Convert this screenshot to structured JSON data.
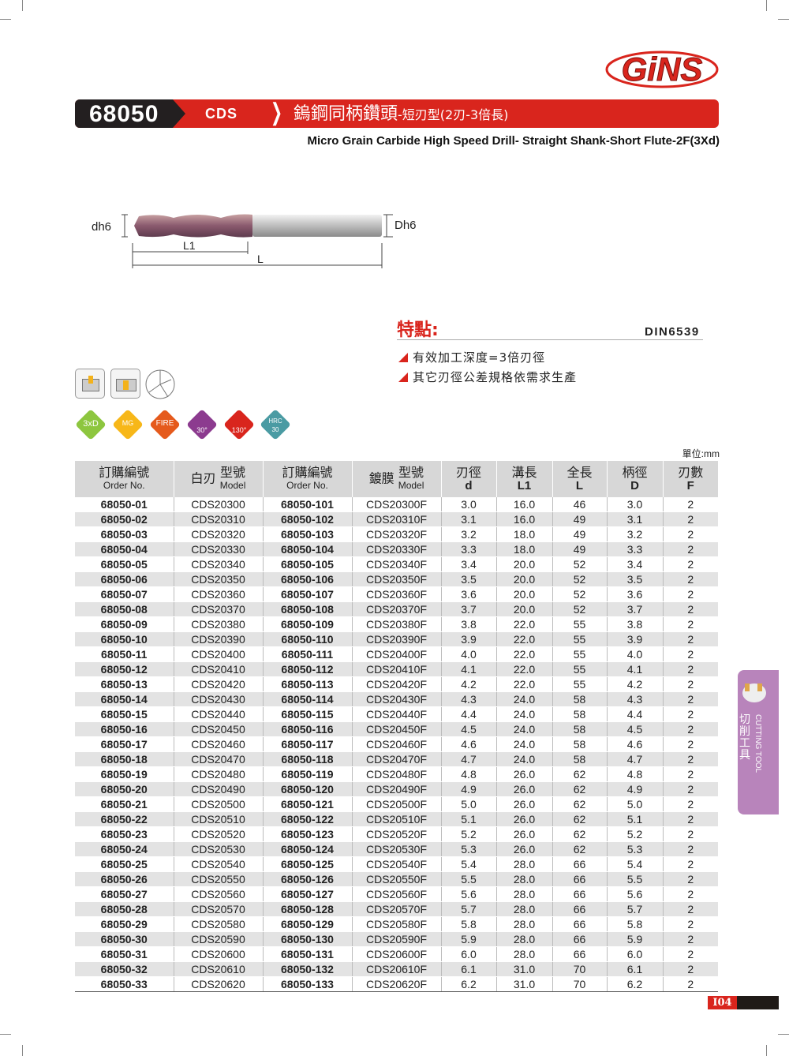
{
  "logo": {
    "text": "GiNS",
    "color": "#d9251d"
  },
  "header": {
    "code": "68050",
    "series": "CDS",
    "title_main": "鎢鋼同柄鑽頭",
    "title_sub": "-短刃型(2刃-3倍長)",
    "subtitle": "Micro Grain Carbide High Speed Drill- Straight Shank-Short Flute-2F(3Xd)",
    "accent": "#d9251d"
  },
  "diagram": {
    "dh6": "dh6",
    "Dh6": "Dh6",
    "L1": "L1",
    "L": "L"
  },
  "features": {
    "heading": "特點:",
    "standard": "DIN6539",
    "items": [
      "有效加工深度=3倍刃徑",
      "其它刃徑公差規格依需求生產"
    ]
  },
  "badges": [
    {
      "label": "3xD",
      "color": "#8dc63f"
    },
    {
      "label": "MG",
      "color": "#f7b719"
    },
    {
      "label": "FIRE",
      "color": "#e55a1c"
    },
    {
      "label": "30°",
      "color": "#8c3b8f"
    },
    {
      "label": "130°",
      "color": "#d9251d"
    },
    {
      "label": "HRC 30",
      "color": "#4a9ba3"
    }
  ],
  "table": {
    "unit": "單位:mm",
    "headers": [
      {
        "cn": "訂購編號",
        "en": "Order No."
      },
      {
        "cn_left": "白刃",
        "cn": "型號",
        "en": "Model"
      },
      {
        "cn": "訂購編號",
        "en": "Order No."
      },
      {
        "cn_left": "鍍膜",
        "cn": "型號",
        "en": "Model"
      },
      {
        "cn": "刃徑",
        "sym": "d"
      },
      {
        "cn": "溝長",
        "sym": "L1"
      },
      {
        "cn": "全長",
        "sym": "L"
      },
      {
        "cn": "柄徑",
        "sym": "D"
      },
      {
        "cn": "刃數",
        "sym": "F"
      }
    ],
    "rows": [
      [
        "68050-01",
        "CDS20300",
        "68050-101",
        "CDS20300F",
        "3.0",
        "16.0",
        "46",
        "3.0",
        "2"
      ],
      [
        "68050-02",
        "CDS20310",
        "68050-102",
        "CDS20310F",
        "3.1",
        "16.0",
        "49",
        "3.1",
        "2"
      ],
      [
        "68050-03",
        "CDS20320",
        "68050-103",
        "CDS20320F",
        "3.2",
        "18.0",
        "49",
        "3.2",
        "2"
      ],
      [
        "68050-04",
        "CDS20330",
        "68050-104",
        "CDS20330F",
        "3.3",
        "18.0",
        "49",
        "3.3",
        "2"
      ],
      [
        "68050-05",
        "CDS20340",
        "68050-105",
        "CDS20340F",
        "3.4",
        "20.0",
        "52",
        "3.4",
        "2"
      ],
      [
        "68050-06",
        "CDS20350",
        "68050-106",
        "CDS20350F",
        "3.5",
        "20.0",
        "52",
        "3.5",
        "2"
      ],
      [
        "68050-07",
        "CDS20360",
        "68050-107",
        "CDS20360F",
        "3.6",
        "20.0",
        "52",
        "3.6",
        "2"
      ],
      [
        "68050-08",
        "CDS20370",
        "68050-108",
        "CDS20370F",
        "3.7",
        "20.0",
        "52",
        "3.7",
        "2"
      ],
      [
        "68050-09",
        "CDS20380",
        "68050-109",
        "CDS20380F",
        "3.8",
        "22.0",
        "55",
        "3.8",
        "2"
      ],
      [
        "68050-10",
        "CDS20390",
        "68050-110",
        "CDS20390F",
        "3.9",
        "22.0",
        "55",
        "3.9",
        "2"
      ],
      [
        "68050-11",
        "CDS20400",
        "68050-111",
        "CDS20400F",
        "4.0",
        "22.0",
        "55",
        "4.0",
        "2"
      ],
      [
        "68050-12",
        "CDS20410",
        "68050-112",
        "CDS20410F",
        "4.1",
        "22.0",
        "55",
        "4.1",
        "2"
      ],
      [
        "68050-13",
        "CDS20420",
        "68050-113",
        "CDS20420F",
        "4.2",
        "22.0",
        "55",
        "4.2",
        "2"
      ],
      [
        "68050-14",
        "CDS20430",
        "68050-114",
        "CDS20430F",
        "4.3",
        "24.0",
        "58",
        "4.3",
        "2"
      ],
      [
        "68050-15",
        "CDS20440",
        "68050-115",
        "CDS20440F",
        "4.4",
        "24.0",
        "58",
        "4.4",
        "2"
      ],
      [
        "68050-16",
        "CDS20450",
        "68050-116",
        "CDS20450F",
        "4.5",
        "24.0",
        "58",
        "4.5",
        "2"
      ],
      [
        "68050-17",
        "CDS20460",
        "68050-117",
        "CDS20460F",
        "4.6",
        "24.0",
        "58",
        "4.6",
        "2"
      ],
      [
        "68050-18",
        "CDS20470",
        "68050-118",
        "CDS20470F",
        "4.7",
        "24.0",
        "58",
        "4.7",
        "2"
      ],
      [
        "68050-19",
        "CDS20480",
        "68050-119",
        "CDS20480F",
        "4.8",
        "26.0",
        "62",
        "4.8",
        "2"
      ],
      [
        "68050-20",
        "CDS20490",
        "68050-120",
        "CDS20490F",
        "4.9",
        "26.0",
        "62",
        "4.9",
        "2"
      ],
      [
        "68050-21",
        "CDS20500",
        "68050-121",
        "CDS20500F",
        "5.0",
        "26.0",
        "62",
        "5.0",
        "2"
      ],
      [
        "68050-22",
        "CDS20510",
        "68050-122",
        "CDS20510F",
        "5.1",
        "26.0",
        "62",
        "5.1",
        "2"
      ],
      [
        "68050-23",
        "CDS20520",
        "68050-123",
        "CDS20520F",
        "5.2",
        "26.0",
        "62",
        "5.2",
        "2"
      ],
      [
        "68050-24",
        "CDS20530",
        "68050-124",
        "CDS20530F",
        "5.3",
        "26.0",
        "62",
        "5.3",
        "2"
      ],
      [
        "68050-25",
        "CDS20540",
        "68050-125",
        "CDS20540F",
        "5.4",
        "28.0",
        "66",
        "5.4",
        "2"
      ],
      [
        "68050-26",
        "CDS20550",
        "68050-126",
        "CDS20550F",
        "5.5",
        "28.0",
        "66",
        "5.5",
        "2"
      ],
      [
        "68050-27",
        "CDS20560",
        "68050-127",
        "CDS20560F",
        "5.6",
        "28.0",
        "66",
        "5.6",
        "2"
      ],
      [
        "68050-28",
        "CDS20570",
        "68050-128",
        "CDS20570F",
        "5.7",
        "28.0",
        "66",
        "5.7",
        "2"
      ],
      [
        "68050-29",
        "CDS20580",
        "68050-129",
        "CDS20580F",
        "5.8",
        "28.0",
        "66",
        "5.8",
        "2"
      ],
      [
        "68050-30",
        "CDS20590",
        "68050-130",
        "CDS20590F",
        "5.9",
        "28.0",
        "66",
        "5.9",
        "2"
      ],
      [
        "68050-31",
        "CDS20600",
        "68050-131",
        "CDS20600F",
        "6.0",
        "28.0",
        "66",
        "6.0",
        "2"
      ],
      [
        "68050-32",
        "CDS20610",
        "68050-132",
        "CDS20610F",
        "6.1",
        "31.0",
        "70",
        "6.1",
        "2"
      ],
      [
        "68050-33",
        "CDS20620",
        "68050-133",
        "CDS20620F",
        "6.2",
        "31.0",
        "70",
        "6.2",
        "2"
      ]
    ]
  },
  "side_tab": {
    "cn": "切削工具",
    "en": "CUTTING TOOL",
    "color": "#b884bb"
  },
  "footer": {
    "page": "I04"
  }
}
